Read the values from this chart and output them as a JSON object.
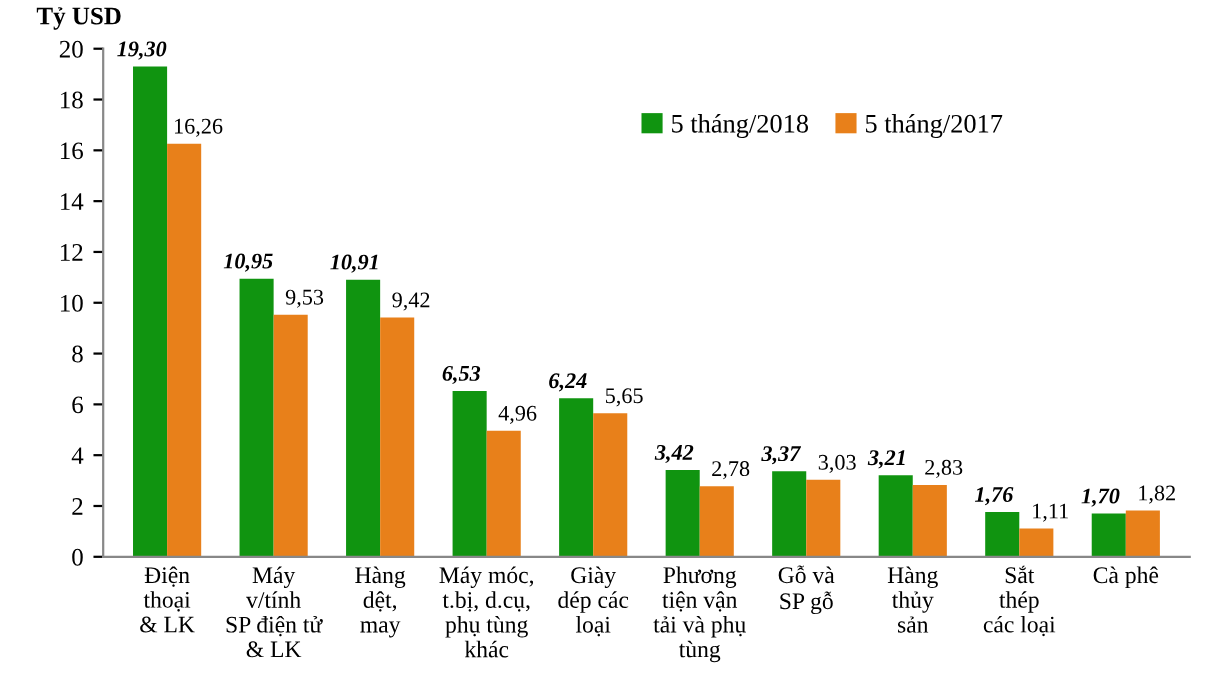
{
  "chart_data": {
    "type": "bar",
    "ylabel": "Tỷ USD",
    "categories": [
      "Điện\nthoại\n& LK",
      "Máy\nv/tính\nSP điện tử\n& LK",
      "Hàng\ndệt,\nmay",
      "Máy móc,\nt.bị, d.cụ,\nphụ tùng\nkhác",
      "Giày\ndép các\nloại",
      "Phương\ntiện vận\ntải và phụ\ntùng",
      "Gỗ và\nSP gỗ",
      "Hàng\nthủy\nsản",
      "Sắt\nthép\ncác loại",
      "Cà phê"
    ],
    "series": [
      {
        "name": "5 tháng/2018",
        "color": "#109410",
        "values": [
          19.3,
          10.95,
          10.91,
          6.53,
          6.24,
          3.42,
          3.37,
          3.21,
          1.76,
          1.7
        ],
        "value_labels": [
          "19,30",
          "10,95",
          "10,91",
          "6,53",
          "6,24",
          "3,42",
          "3,37",
          "3,21",
          "1,76",
          "1,70"
        ]
      },
      {
        "name": "5 tháng/2017",
        "color": "#e8801a",
        "values": [
          16.26,
          9.53,
          9.42,
          4.96,
          5.65,
          2.78,
          3.03,
          2.83,
          1.11,
          1.82
        ],
        "value_labels": [
          "16,26",
          "9,53",
          "9,42",
          "4,96",
          "5,65",
          "2,78",
          "3,03",
          "2,83",
          "1,11",
          "1,82"
        ]
      }
    ],
    "ylim": [
      0,
      20
    ],
    "yticks": [
      0,
      2,
      4,
      6,
      8,
      10,
      12,
      14,
      16,
      18,
      20
    ],
    "grid": false,
    "legend": "top right"
  }
}
